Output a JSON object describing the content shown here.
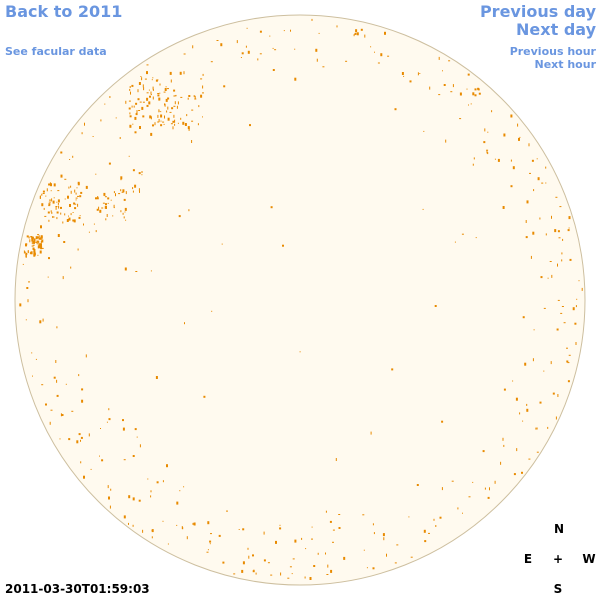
{
  "nav": {
    "back": "Back to 2011",
    "facular": "See facular data",
    "prev_day": "Previous day",
    "next_day": "Next day",
    "prev_hour": "Previous hour",
    "next_hour": "Next hour"
  },
  "timestamp": "2011-03-30T01:59:03",
  "compass": {
    "n": "N",
    "e": "E",
    "center": "+",
    "w": "W",
    "s": "S"
  }
}
